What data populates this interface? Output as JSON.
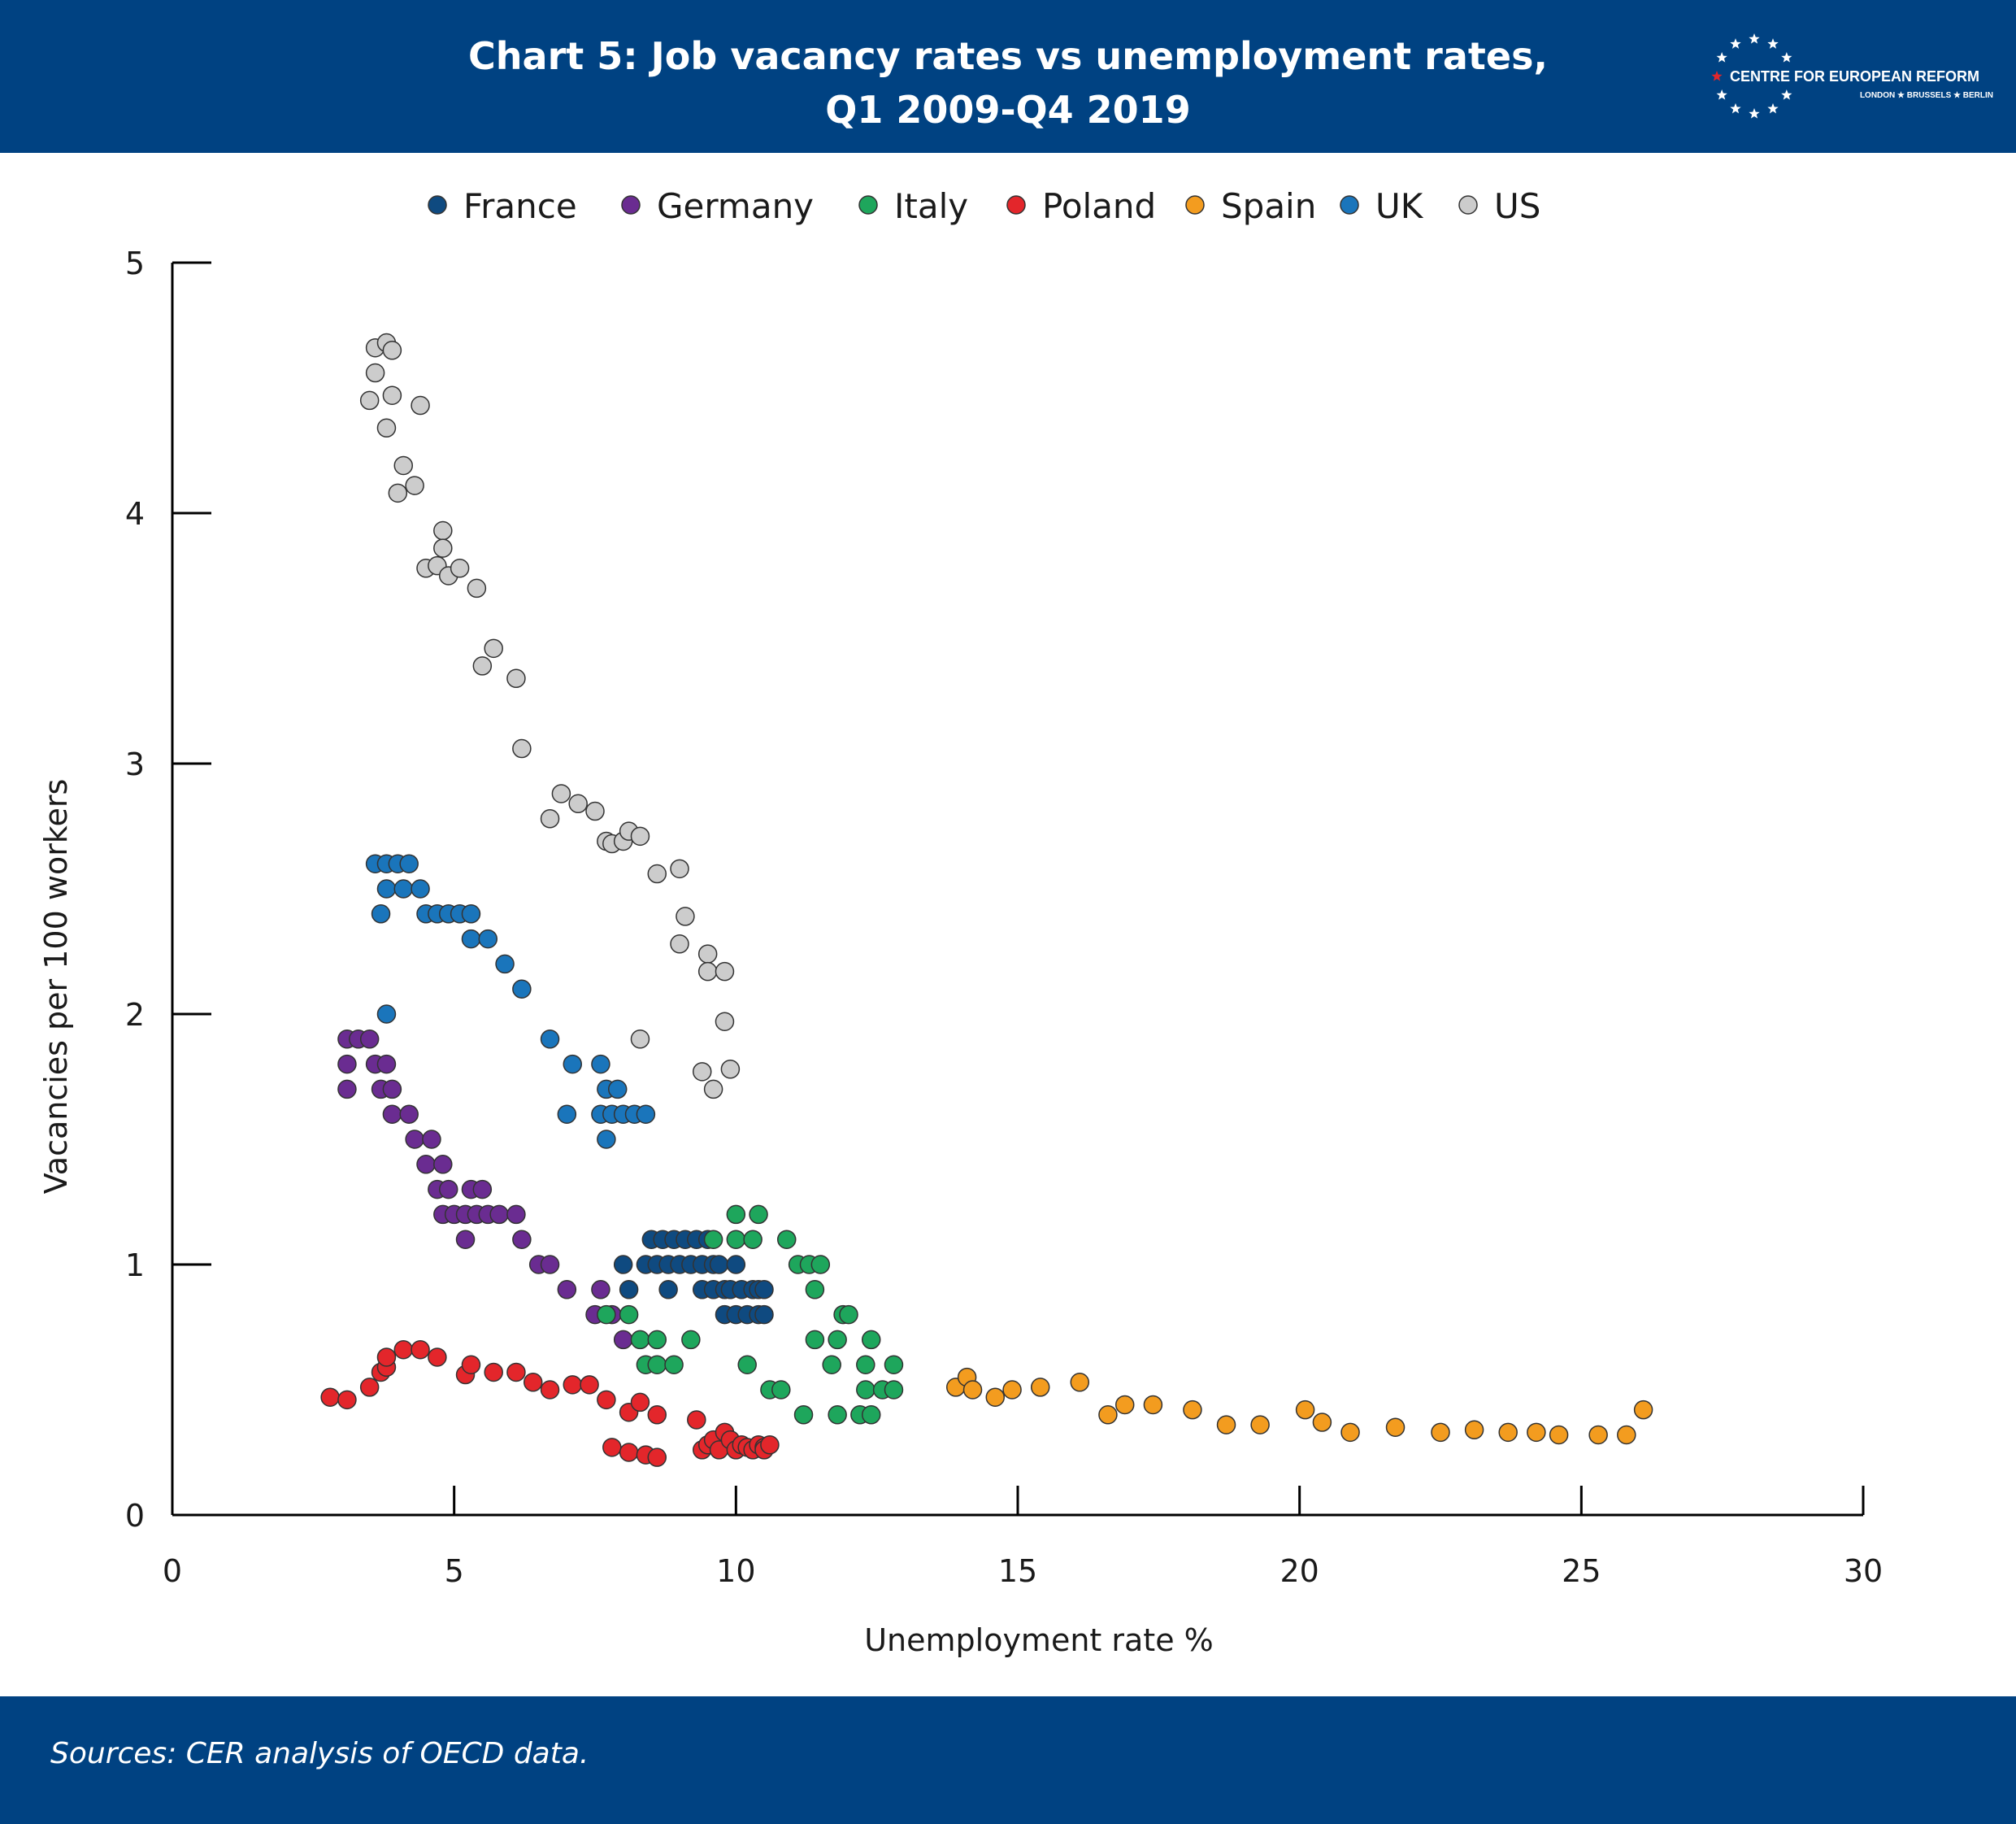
{
  "header": {
    "title_line1": "Chart 5: Job vacancy rates vs unemployment rates,",
    "title_line2": "Q1 2009-Q4 2019",
    "brand_name": "CENTRE FOR EUROPEAN REFORM",
    "brand_cities": "LONDON ★ BRUSSELS ★ BERLIN"
  },
  "footer": {
    "source": "Sources: CER analysis of OECD data."
  },
  "colors": {
    "header_bg": "#004282",
    "axis": "#000000",
    "marker_edge": "#333333",
    "star_accent": "#e3262b"
  },
  "chart_data": {
    "type": "scatter",
    "xlabel": "Unemployment rate %",
    "ylabel": "Vacancies per 100 workers",
    "xlim": [
      0,
      30
    ],
    "ylim": [
      0,
      5
    ],
    "xticks": [
      0,
      5,
      10,
      15,
      20,
      25,
      30
    ],
    "yticks": [
      0,
      1,
      2,
      3,
      4,
      5
    ],
    "grid": false,
    "legend_position": "top-center",
    "series": [
      {
        "name": "France",
        "color": "#0f4a80",
        "points": [
          [
            8.0,
            1.0
          ],
          [
            8.1,
            0.9
          ],
          [
            8.4,
            1.0
          ],
          [
            8.5,
            1.1
          ],
          [
            8.6,
            1.0
          ],
          [
            8.7,
            1.1
          ],
          [
            8.8,
            1.0
          ],
          [
            8.8,
            0.9
          ],
          [
            8.9,
            1.1
          ],
          [
            9.0,
            1.0
          ],
          [
            9.1,
            1.1
          ],
          [
            9.2,
            1.0
          ],
          [
            9.3,
            1.1
          ],
          [
            9.4,
            1.0
          ],
          [
            9.4,
            0.9
          ],
          [
            9.5,
            1.1
          ],
          [
            9.6,
            1.0
          ],
          [
            9.6,
            0.9
          ],
          [
            9.7,
            1.0
          ],
          [
            9.8,
            0.9
          ],
          [
            9.8,
            0.8
          ],
          [
            9.9,
            0.9
          ],
          [
            10.0,
            1.0
          ],
          [
            10.0,
            0.8
          ],
          [
            10.1,
            0.9
          ],
          [
            10.2,
            0.8
          ],
          [
            10.3,
            0.9
          ],
          [
            10.4,
            0.8
          ],
          [
            10.4,
            0.9
          ],
          [
            10.5,
            0.8
          ],
          [
            10.5,
            0.9
          ]
        ]
      },
      {
        "name": "Germany",
        "color": "#6a2c91",
        "points": [
          [
            3.1,
            1.9
          ],
          [
            3.1,
            1.8
          ],
          [
            3.1,
            1.7
          ],
          [
            3.3,
            1.9
          ],
          [
            3.5,
            1.9
          ],
          [
            3.6,
            1.8
          ],
          [
            3.7,
            1.7
          ],
          [
            3.8,
            1.8
          ],
          [
            3.9,
            1.6
          ],
          [
            3.9,
            1.7
          ],
          [
            4.2,
            1.6
          ],
          [
            4.3,
            1.5
          ],
          [
            4.5,
            1.4
          ],
          [
            4.6,
            1.5
          ],
          [
            4.7,
            1.3
          ],
          [
            4.8,
            1.4
          ],
          [
            4.8,
            1.2
          ],
          [
            4.9,
            1.3
          ],
          [
            5.0,
            1.2
          ],
          [
            5.2,
            1.1
          ],
          [
            5.2,
            1.2
          ],
          [
            5.3,
            1.3
          ],
          [
            5.4,
            1.2
          ],
          [
            5.5,
            1.3
          ],
          [
            5.6,
            1.2
          ],
          [
            5.8,
            1.2
          ],
          [
            6.1,
            1.2
          ],
          [
            6.2,
            1.1
          ],
          [
            6.5,
            1.0
          ],
          [
            6.7,
            1.0
          ],
          [
            7.0,
            0.9
          ],
          [
            7.5,
            0.8
          ],
          [
            7.6,
            0.9
          ],
          [
            7.8,
            0.8
          ],
          [
            8.0,
            0.7
          ]
        ]
      },
      {
        "name": "Italy",
        "color": "#1ea65c",
        "points": [
          [
            7.7,
            0.8
          ],
          [
            8.1,
            0.8
          ],
          [
            8.3,
            0.7
          ],
          [
            8.4,
            0.6
          ],
          [
            8.6,
            0.7
          ],
          [
            8.6,
            0.6
          ],
          [
            8.9,
            0.6
          ],
          [
            9.2,
            0.7
          ],
          [
            9.6,
            1.1
          ],
          [
            10.0,
            1.1
          ],
          [
            10.0,
            1.2
          ],
          [
            10.2,
            0.6
          ],
          [
            10.3,
            1.1
          ],
          [
            10.4,
            1.2
          ],
          [
            10.6,
            0.5
          ],
          [
            10.8,
            0.5
          ],
          [
            10.9,
            1.1
          ],
          [
            11.1,
            1.0
          ],
          [
            11.2,
            0.4
          ],
          [
            11.3,
            1.0
          ],
          [
            11.4,
            0.9
          ],
          [
            11.4,
            0.7
          ],
          [
            11.5,
            1.0
          ],
          [
            11.7,
            0.6
          ],
          [
            11.8,
            0.7
          ],
          [
            11.8,
            0.4
          ],
          [
            11.9,
            0.8
          ],
          [
            12.0,
            0.8
          ],
          [
            12.2,
            0.4
          ],
          [
            12.3,
            0.5
          ],
          [
            12.3,
            0.6
          ],
          [
            12.4,
            0.7
          ],
          [
            12.4,
            0.4
          ],
          [
            12.6,
            0.5
          ],
          [
            12.8,
            0.6
          ],
          [
            12.8,
            0.5
          ]
        ]
      },
      {
        "name": "Poland",
        "color": "#e3262b",
        "points": [
          [
            2.8,
            0.47
          ],
          [
            3.1,
            0.46
          ],
          [
            3.5,
            0.51
          ],
          [
            3.7,
            0.57
          ],
          [
            3.8,
            0.59
          ],
          [
            3.8,
            0.63
          ],
          [
            4.1,
            0.66
          ],
          [
            4.4,
            0.66
          ],
          [
            4.7,
            0.63
          ],
          [
            5.2,
            0.56
          ],
          [
            5.3,
            0.6
          ],
          [
            5.7,
            0.57
          ],
          [
            6.1,
            0.57
          ],
          [
            6.4,
            0.53
          ],
          [
            6.7,
            0.5
          ],
          [
            7.1,
            0.52
          ],
          [
            7.4,
            0.52
          ],
          [
            7.7,
            0.46
          ],
          [
            7.8,
            0.27
          ],
          [
            8.1,
            0.25
          ],
          [
            8.1,
            0.41
          ],
          [
            8.3,
            0.45
          ],
          [
            8.4,
            0.24
          ],
          [
            8.6,
            0.4
          ],
          [
            8.6,
            0.23
          ],
          [
            9.3,
            0.38
          ],
          [
            9.4,
            0.26
          ],
          [
            9.5,
            0.28
          ],
          [
            9.6,
            0.3
          ],
          [
            9.7,
            0.26
          ],
          [
            9.8,
            0.33
          ],
          [
            9.9,
            0.3
          ],
          [
            10.0,
            0.26
          ],
          [
            10.1,
            0.28
          ],
          [
            10.2,
            0.27
          ],
          [
            10.3,
            0.26
          ],
          [
            10.4,
            0.28
          ],
          [
            10.5,
            0.27
          ],
          [
            10.5,
            0.26
          ],
          [
            10.6,
            0.28
          ]
        ]
      },
      {
        "name": "Spain",
        "color": "#f39c1f",
        "points": [
          [
            13.9,
            0.51
          ],
          [
            14.1,
            0.55
          ],
          [
            14.2,
            0.5
          ],
          [
            14.6,
            0.47
          ],
          [
            14.9,
            0.5
          ],
          [
            15.4,
            0.51
          ],
          [
            16.1,
            0.53
          ],
          [
            16.6,
            0.4
          ],
          [
            16.9,
            0.44
          ],
          [
            17.4,
            0.44
          ],
          [
            18.1,
            0.42
          ],
          [
            18.7,
            0.36
          ],
          [
            19.3,
            0.36
          ],
          [
            20.1,
            0.42
          ],
          [
            20.4,
            0.37
          ],
          [
            20.9,
            0.33
          ],
          [
            21.7,
            0.35
          ],
          [
            22.5,
            0.33
          ],
          [
            23.1,
            0.34
          ],
          [
            23.7,
            0.33
          ],
          [
            24.2,
            0.33
          ],
          [
            24.6,
            0.32
          ],
          [
            25.3,
            0.32
          ],
          [
            25.8,
            0.32
          ],
          [
            26.1,
            0.42
          ]
        ]
      },
      {
        "name": "UK",
        "color": "#1a75bb",
        "points": [
          [
            3.6,
            2.6
          ],
          [
            3.7,
            2.4
          ],
          [
            3.8,
            2.6
          ],
          [
            3.8,
            2.5
          ],
          [
            3.8,
            2.0
          ],
          [
            4.0,
            2.6
          ],
          [
            4.1,
            2.5
          ],
          [
            4.2,
            2.6
          ],
          [
            4.4,
            2.5
          ],
          [
            4.5,
            2.4
          ],
          [
            4.7,
            2.4
          ],
          [
            4.9,
            2.4
          ],
          [
            5.1,
            2.4
          ],
          [
            5.3,
            2.4
          ],
          [
            5.3,
            2.3
          ],
          [
            5.6,
            2.3
          ],
          [
            5.9,
            2.2
          ],
          [
            6.2,
            2.1
          ],
          [
            6.7,
            1.9
          ],
          [
            7.0,
            1.6
          ],
          [
            7.1,
            1.8
          ],
          [
            7.6,
            1.8
          ],
          [
            7.6,
            1.6
          ],
          [
            7.7,
            1.5
          ],
          [
            7.7,
            1.7
          ],
          [
            7.8,
            1.6
          ],
          [
            7.9,
            1.7
          ],
          [
            8.0,
            1.6
          ],
          [
            8.2,
            1.6
          ],
          [
            8.4,
            1.6
          ]
        ]
      },
      {
        "name": "US",
        "color": "#cccccc",
        "points": [
          [
            3.5,
            4.45
          ],
          [
            3.6,
            4.66
          ],
          [
            3.6,
            4.56
          ],
          [
            3.8,
            4.68
          ],
          [
            3.8,
            4.34
          ],
          [
            3.9,
            4.65
          ],
          [
            3.9,
            4.47
          ],
          [
            4.0,
            4.08
          ],
          [
            4.1,
            4.19
          ],
          [
            4.3,
            4.11
          ],
          [
            4.4,
            4.43
          ],
          [
            4.5,
            3.78
          ],
          [
            4.7,
            3.79
          ],
          [
            4.8,
            3.93
          ],
          [
            4.8,
            3.86
          ],
          [
            4.9,
            3.75
          ],
          [
            5.1,
            3.78
          ],
          [
            5.4,
            3.7
          ],
          [
            5.5,
            3.39
          ],
          [
            5.7,
            3.46
          ],
          [
            6.1,
            3.34
          ],
          [
            6.2,
            3.06
          ],
          [
            6.7,
            2.78
          ],
          [
            6.9,
            2.88
          ],
          [
            7.2,
            2.84
          ],
          [
            7.5,
            2.81
          ],
          [
            7.7,
            2.69
          ],
          [
            7.8,
            2.68
          ],
          [
            8.0,
            2.69
          ],
          [
            8.1,
            2.73
          ],
          [
            8.3,
            2.71
          ],
          [
            8.3,
            1.9
          ],
          [
            8.6,
            2.56
          ],
          [
            9.0,
            2.58
          ],
          [
            9.0,
            2.28
          ],
          [
            9.1,
            2.39
          ],
          [
            9.4,
            1.77
          ],
          [
            9.5,
            2.24
          ],
          [
            9.5,
            2.17
          ],
          [
            9.6,
            1.7
          ],
          [
            9.8,
            2.17
          ],
          [
            9.8,
            1.97
          ],
          [
            9.9,
            1.78
          ]
        ]
      }
    ]
  }
}
